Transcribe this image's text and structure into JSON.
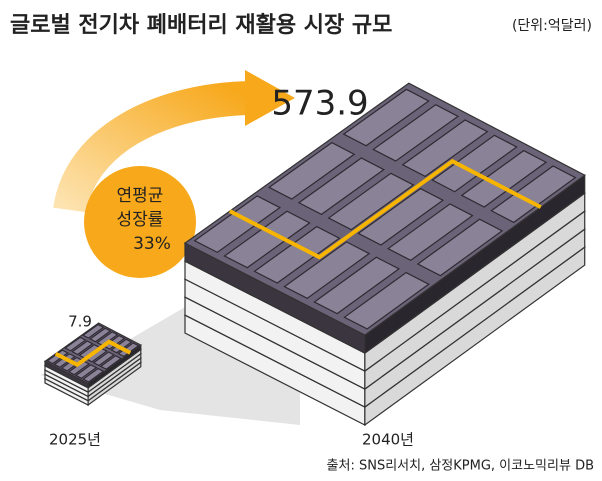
{
  "chart_data": {
    "type": "battery",
    "title": "글로벌 전기차 폐배터리 재활용 시장 규모",
    "unit": "(단위:억달러)",
    "categories": [
      "2025년",
      "2040년"
    ],
    "values": [
      7.9,
      573.9
    ],
    "color": "#6b6378",
    "annotation": [
      "연평균",
      "성장률",
      "33%"
    ],
    "source": "출처: SNS리서치, 삼정KPMG, 이코노믹리뷰 DB"
  }
}
